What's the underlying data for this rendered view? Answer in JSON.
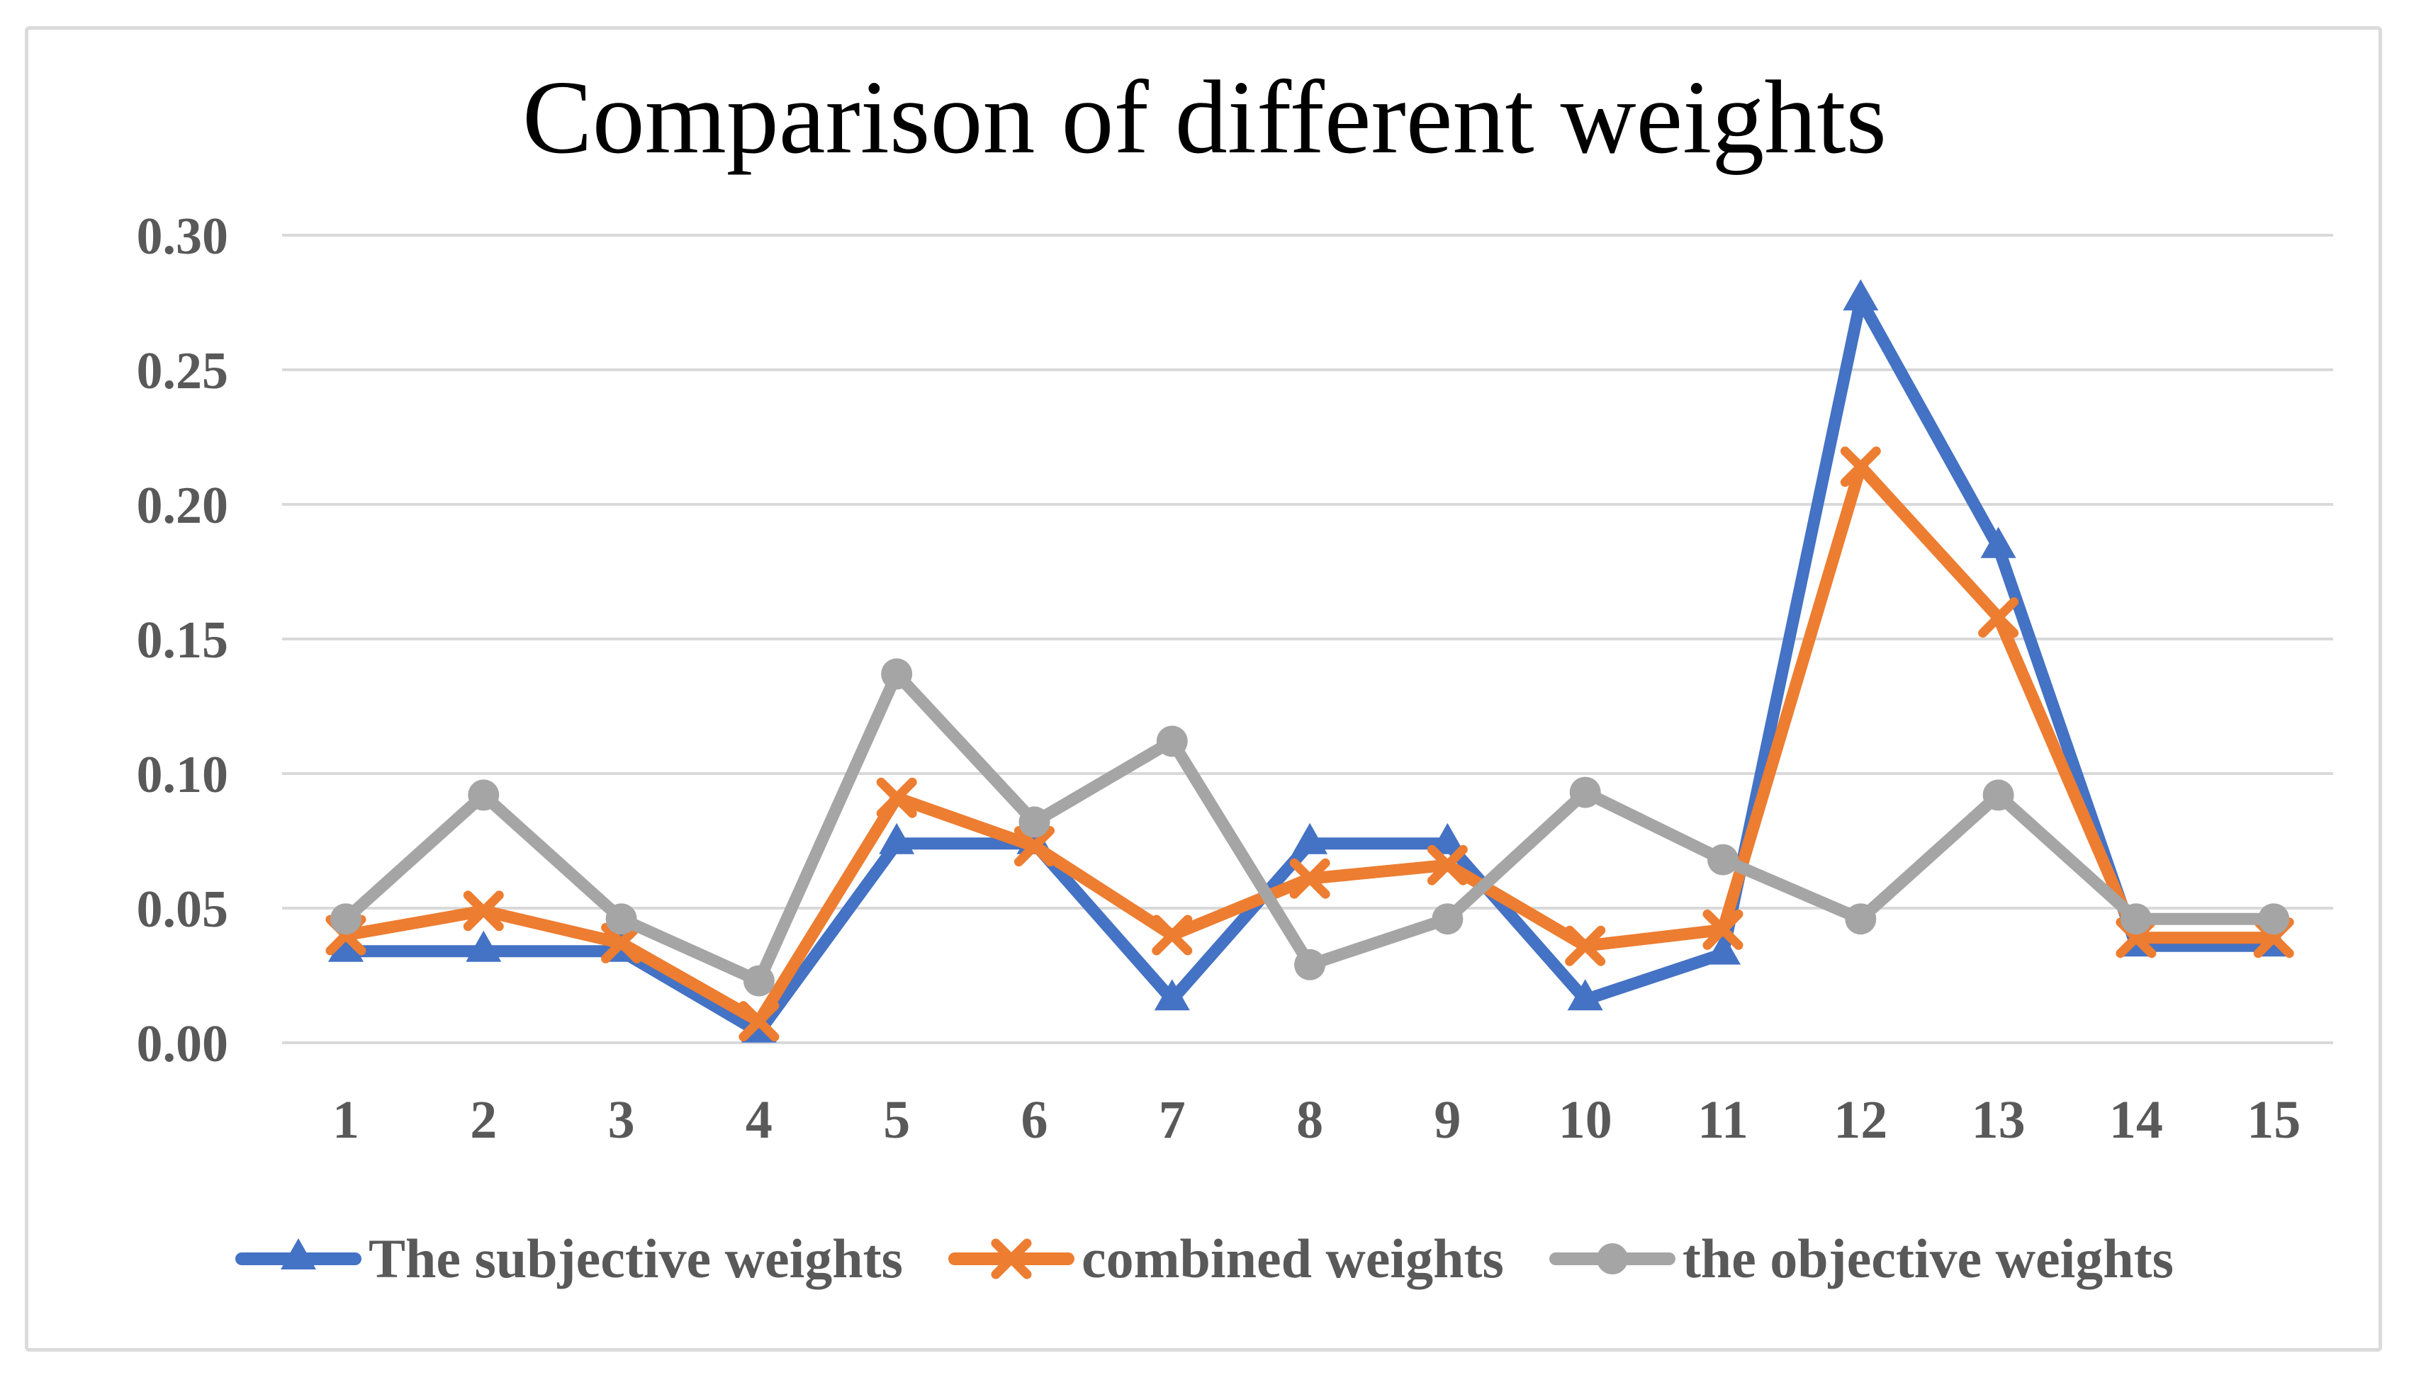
{
  "chart_data": {
    "type": "line",
    "title": "Comparison of different weights",
    "categories": [
      "1",
      "2",
      "3",
      "4",
      "5",
      "6",
      "7",
      "8",
      "9",
      "10",
      "11",
      "12",
      "13",
      "14",
      "15"
    ],
    "xlabel": "",
    "ylabel": "",
    "ylim": [
      0,
      0.3
    ],
    "ytick_labels": [
      "0.00",
      "0.05",
      "0.10",
      "0.15",
      "0.20",
      "0.25",
      "0.30"
    ],
    "grid": true,
    "legend_position": "bottom",
    "colors": {
      "background": "#FFFFFF",
      "frame_border": "#DBDBDB",
      "gridline": "#D9D9D9",
      "tick_text": "#595959",
      "title_text": "#000000",
      "legend_text": "#595959"
    },
    "series": [
      {
        "name": "The subjective weights",
        "color": "#4472C4",
        "marker": "triangle",
        "values": [
          0.034,
          0.034,
          0.034,
          0.004,
          0.074,
          0.074,
          0.016,
          0.074,
          0.074,
          0.016,
          0.033,
          0.276,
          0.184,
          0.036,
          0.036
        ]
      },
      {
        "name": "combined weights",
        "color": "#ED7D31",
        "marker": "x",
        "values": [
          0.04,
          0.049,
          0.037,
          0.008,
          0.091,
          0.073,
          0.04,
          0.061,
          0.066,
          0.036,
          0.042,
          0.214,
          0.158,
          0.039,
          0.039
        ]
      },
      {
        "name": "the objective weights",
        "color": "#A5A5A5",
        "marker": "circle",
        "values": [
          0.046,
          0.092,
          0.046,
          0.023,
          0.137,
          0.082,
          0.112,
          0.029,
          0.046,
          0.093,
          0.068,
          0.046,
          0.092,
          0.046,
          0.046
        ]
      }
    ]
  }
}
